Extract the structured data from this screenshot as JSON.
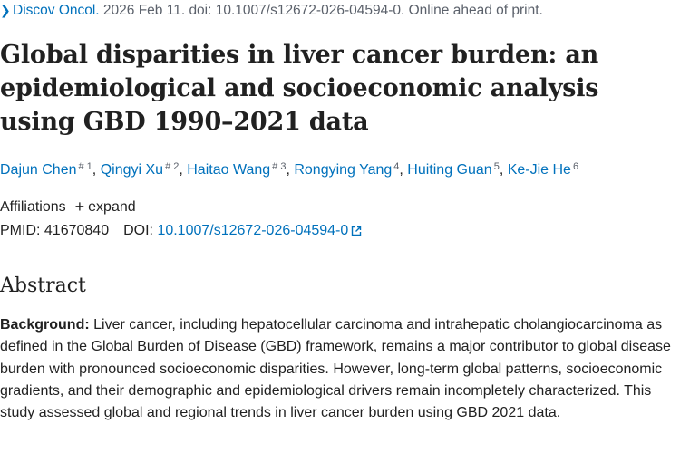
{
  "citation": {
    "journal": "Discov Oncol.",
    "details": " 2026 Feb 11. doi: 10.1007/s12672-026-04594-0. Online ahead of print."
  },
  "title": "Global disparities in liver cancer burden: an epidemiological and socioeconomic analysis using GBD 1990–2021 data",
  "authors": [
    {
      "name": "Dajun Chen",
      "sup": "# 1"
    },
    {
      "name": "Qingyi Xu",
      "sup": "# 2"
    },
    {
      "name": "Haitao Wang",
      "sup": "# 3"
    },
    {
      "name": "Rongying Yang",
      "sup": "4"
    },
    {
      "name": "Huiting Guan",
      "sup": "5"
    },
    {
      "name": "Ke-Jie He",
      "sup": "6"
    }
  ],
  "affiliations": {
    "label": "Affiliations",
    "toggle": "expand"
  },
  "ids": {
    "pmid_label": "PMID:",
    "pmid": "41670840",
    "doi_label": "DOI:",
    "doi": "10.1007/s12672-026-04594-0"
  },
  "abstract": {
    "heading": "Abstract",
    "background_label": "Background:",
    "background_text": " Liver cancer, including hepatocellular carcinoma and intrahepatic cholangiocarcinoma as defined in the Global Burden of Disease (GBD) framework, remains a major contributor to global disease burden with pronounced socioeconomic disparities. However, long-term global patterns, socioeconomic gradients, and their demographic and epidemiological drivers remain incompletely characterized. This study assessed global and regional trends in liver cancer burden using GBD 2021 data."
  },
  "colors": {
    "link": "#0071bc",
    "text": "#212121",
    "muted": "#5b616b"
  }
}
